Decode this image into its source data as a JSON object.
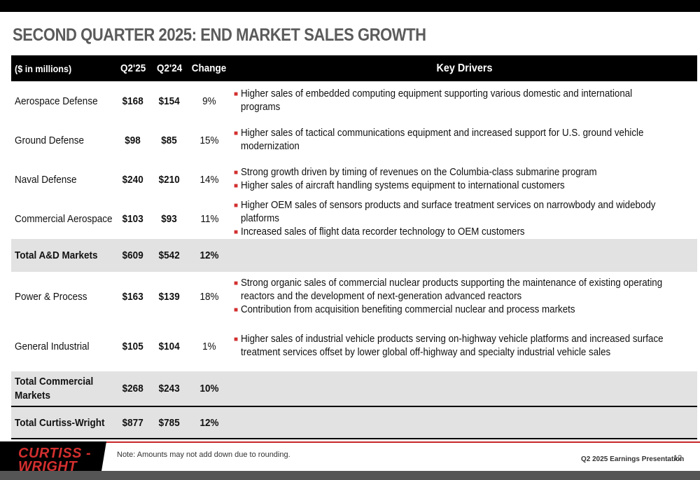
{
  "title": "SECOND QUARTER 2025: END MARKET SALES GROWTH",
  "table": {
    "headers": {
      "segment": "($ in millions)",
      "q225": "Q2'25",
      "q224": "Q2'24",
      "change": "Change",
      "drivers": "Key Drivers"
    },
    "rows": [
      {
        "segment": "Aerospace Defense",
        "q225": "$168",
        "q224": "$154",
        "change": "9%",
        "drivers": [
          "Higher sales of embedded computing equipment supporting various domestic and international programs"
        ]
      },
      {
        "segment": "Ground Defense",
        "q225": "$98",
        "q224": "$85",
        "change": "15%",
        "drivers": [
          "Higher sales of tactical communications equipment and increased support for U.S. ground vehicle modernization"
        ]
      },
      {
        "segment": "Naval Defense",
        "q225": "$240",
        "q224": "$210",
        "change": "14%",
        "drivers": [
          "Strong growth driven by timing of revenues on the Columbia-class submarine program",
          "Higher sales of aircraft handling systems equipment to international customers"
        ]
      },
      {
        "segment": "Commercial Aerospace",
        "q225": "$103",
        "q224": "$93",
        "change": "11%",
        "drivers": [
          "Higher OEM sales of sensors products and surface treatment services on narrowbody and widebody platforms",
          "Increased sales of flight data recorder technology to OEM customers"
        ]
      },
      {
        "segment": "Total A&D Markets",
        "q225": "$609",
        "q224": "$542",
        "change": "12%",
        "drivers": []
      },
      {
        "segment": "Power & Process",
        "q225": "$163",
        "q224": "$139",
        "change": "18%",
        "drivers": [
          "Strong organic sales of commercial nuclear products supporting the maintenance of existing operating reactors and the development of next-generation advanced reactors",
          "Contribution from acquisition benefiting commercial nuclear and process markets"
        ]
      },
      {
        "segment": "General Industrial",
        "q225": "$105",
        "q224": "$104",
        "change": "1%",
        "drivers": [
          "Higher sales of industrial vehicle products serving on-highway vehicle platforms and increased surface treatment services offset by lower global off-highway and specialty industrial vehicle sales"
        ]
      },
      {
        "segment": "Total Commercial Markets",
        "q225": "$268",
        "q224": "$243",
        "change": "10%",
        "drivers": []
      },
      {
        "segment": "Total Curtiss-Wright",
        "q225": "$877",
        "q224": "$785",
        "change": "12%",
        "drivers": []
      }
    ]
  },
  "footer": {
    "logo_text": "CURTISS-WRIGHT",
    "logo_line1": "CURTISS -",
    "logo_line2": "WRIGHT",
    "note": "Note: Amounts may not add down due to rounding.",
    "presentation": "Q2 2025 Earnings Presentation",
    "page": "12"
  },
  "colors": {
    "accent": "#d32f2f",
    "header_bg": "#000000",
    "total_row_bg": "#e2e2e2",
    "title_color": "#5b5b5b"
  },
  "icons": {
    "bullet": "square-bullet-icon"
  }
}
